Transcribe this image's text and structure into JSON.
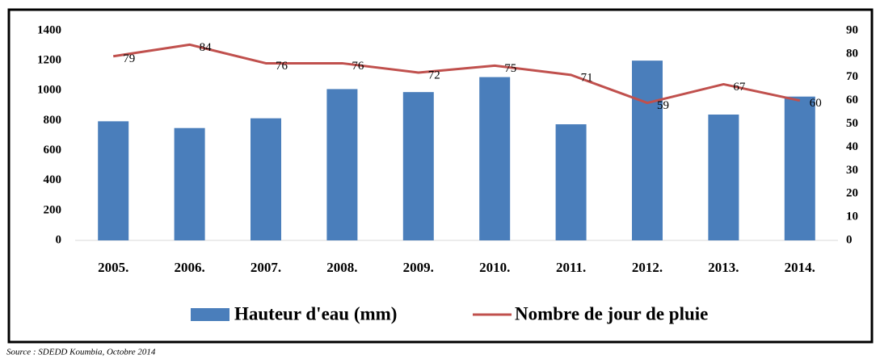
{
  "chart_data": {
    "type": "bar",
    "categories": [
      "2005.",
      "2006.",
      "2007.",
      "2008.",
      "2009.",
      "2010.",
      "2011.",
      "2012.",
      "2013.",
      "2014."
    ],
    "series": [
      {
        "name": "Hauteur d'eau (mm)",
        "color": "#4a7ebb",
        "type": "bar",
        "values": [
          795,
          750,
          815,
          1010,
          990,
          1090,
          775,
          1200,
          840,
          960
        ]
      },
      {
        "name": "Nombre de jour de pluie",
        "color": "#c0504d",
        "type": "line",
        "axis": "y2",
        "values": [
          79,
          84,
          76,
          76,
          72,
          75,
          71,
          59,
          67,
          60
        ]
      }
    ],
    "ylim": [
      0,
      1400
    ],
    "yticks": [
      0,
      200,
      400,
      600,
      800,
      1000,
      1200,
      1400
    ],
    "y2lim": [
      0,
      90
    ],
    "y2ticks": [
      0,
      10,
      20,
      30,
      40,
      50,
      60,
      70,
      80,
      90
    ],
    "legend": "bottom",
    "source": "Source : SDEDD Koumbia, Octobre 2014"
  }
}
